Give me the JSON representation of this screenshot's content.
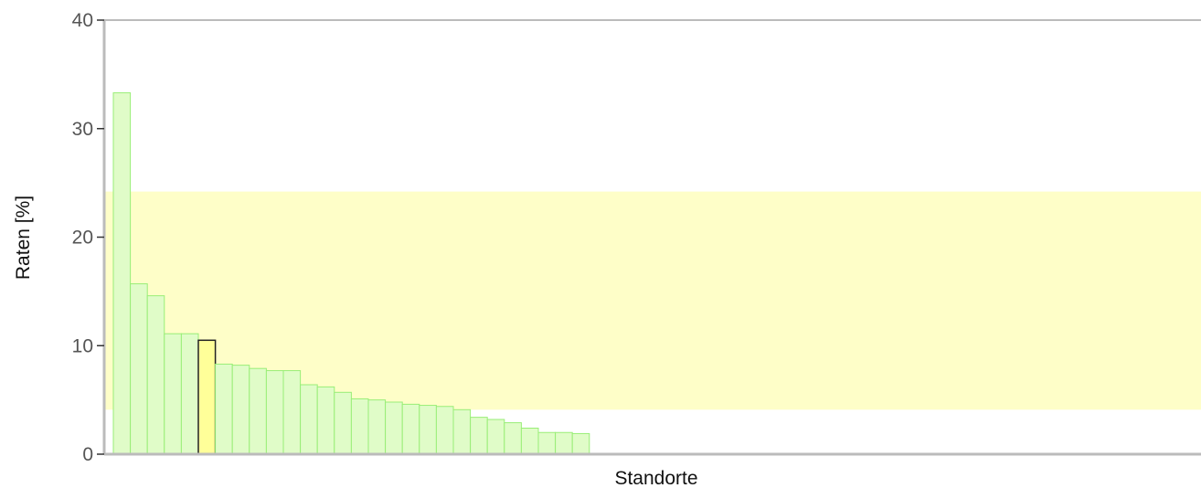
{
  "chart_data": {
    "type": "bar",
    "xlabel": "Standorte",
    "ylabel": "Raten [%]",
    "ylim": [
      0,
      40
    ],
    "yticks": [
      0,
      10,
      20,
      30,
      40
    ],
    "grid": false,
    "reference_band": {
      "low": 4.1,
      "high": 24.2,
      "color": "#fefec8"
    },
    "bar_fill": "#e0fcc8",
    "bar_stroke": "#99ee77",
    "highlight_fill": "#ffff99",
    "highlight_stroke": "#222222",
    "highlight_index": 5,
    "total_slots": 64,
    "values": [
      33.3,
      15.7,
      14.6,
      11.1,
      11.1,
      10.5,
      8.3,
      8.2,
      7.9,
      7.7,
      7.7,
      6.4,
      6.2,
      5.7,
      5.1,
      5.0,
      4.8,
      4.6,
      4.5,
      4.4,
      4.1,
      3.4,
      3.2,
      2.9,
      2.4,
      2.0,
      2.0,
      1.9
    ]
  }
}
